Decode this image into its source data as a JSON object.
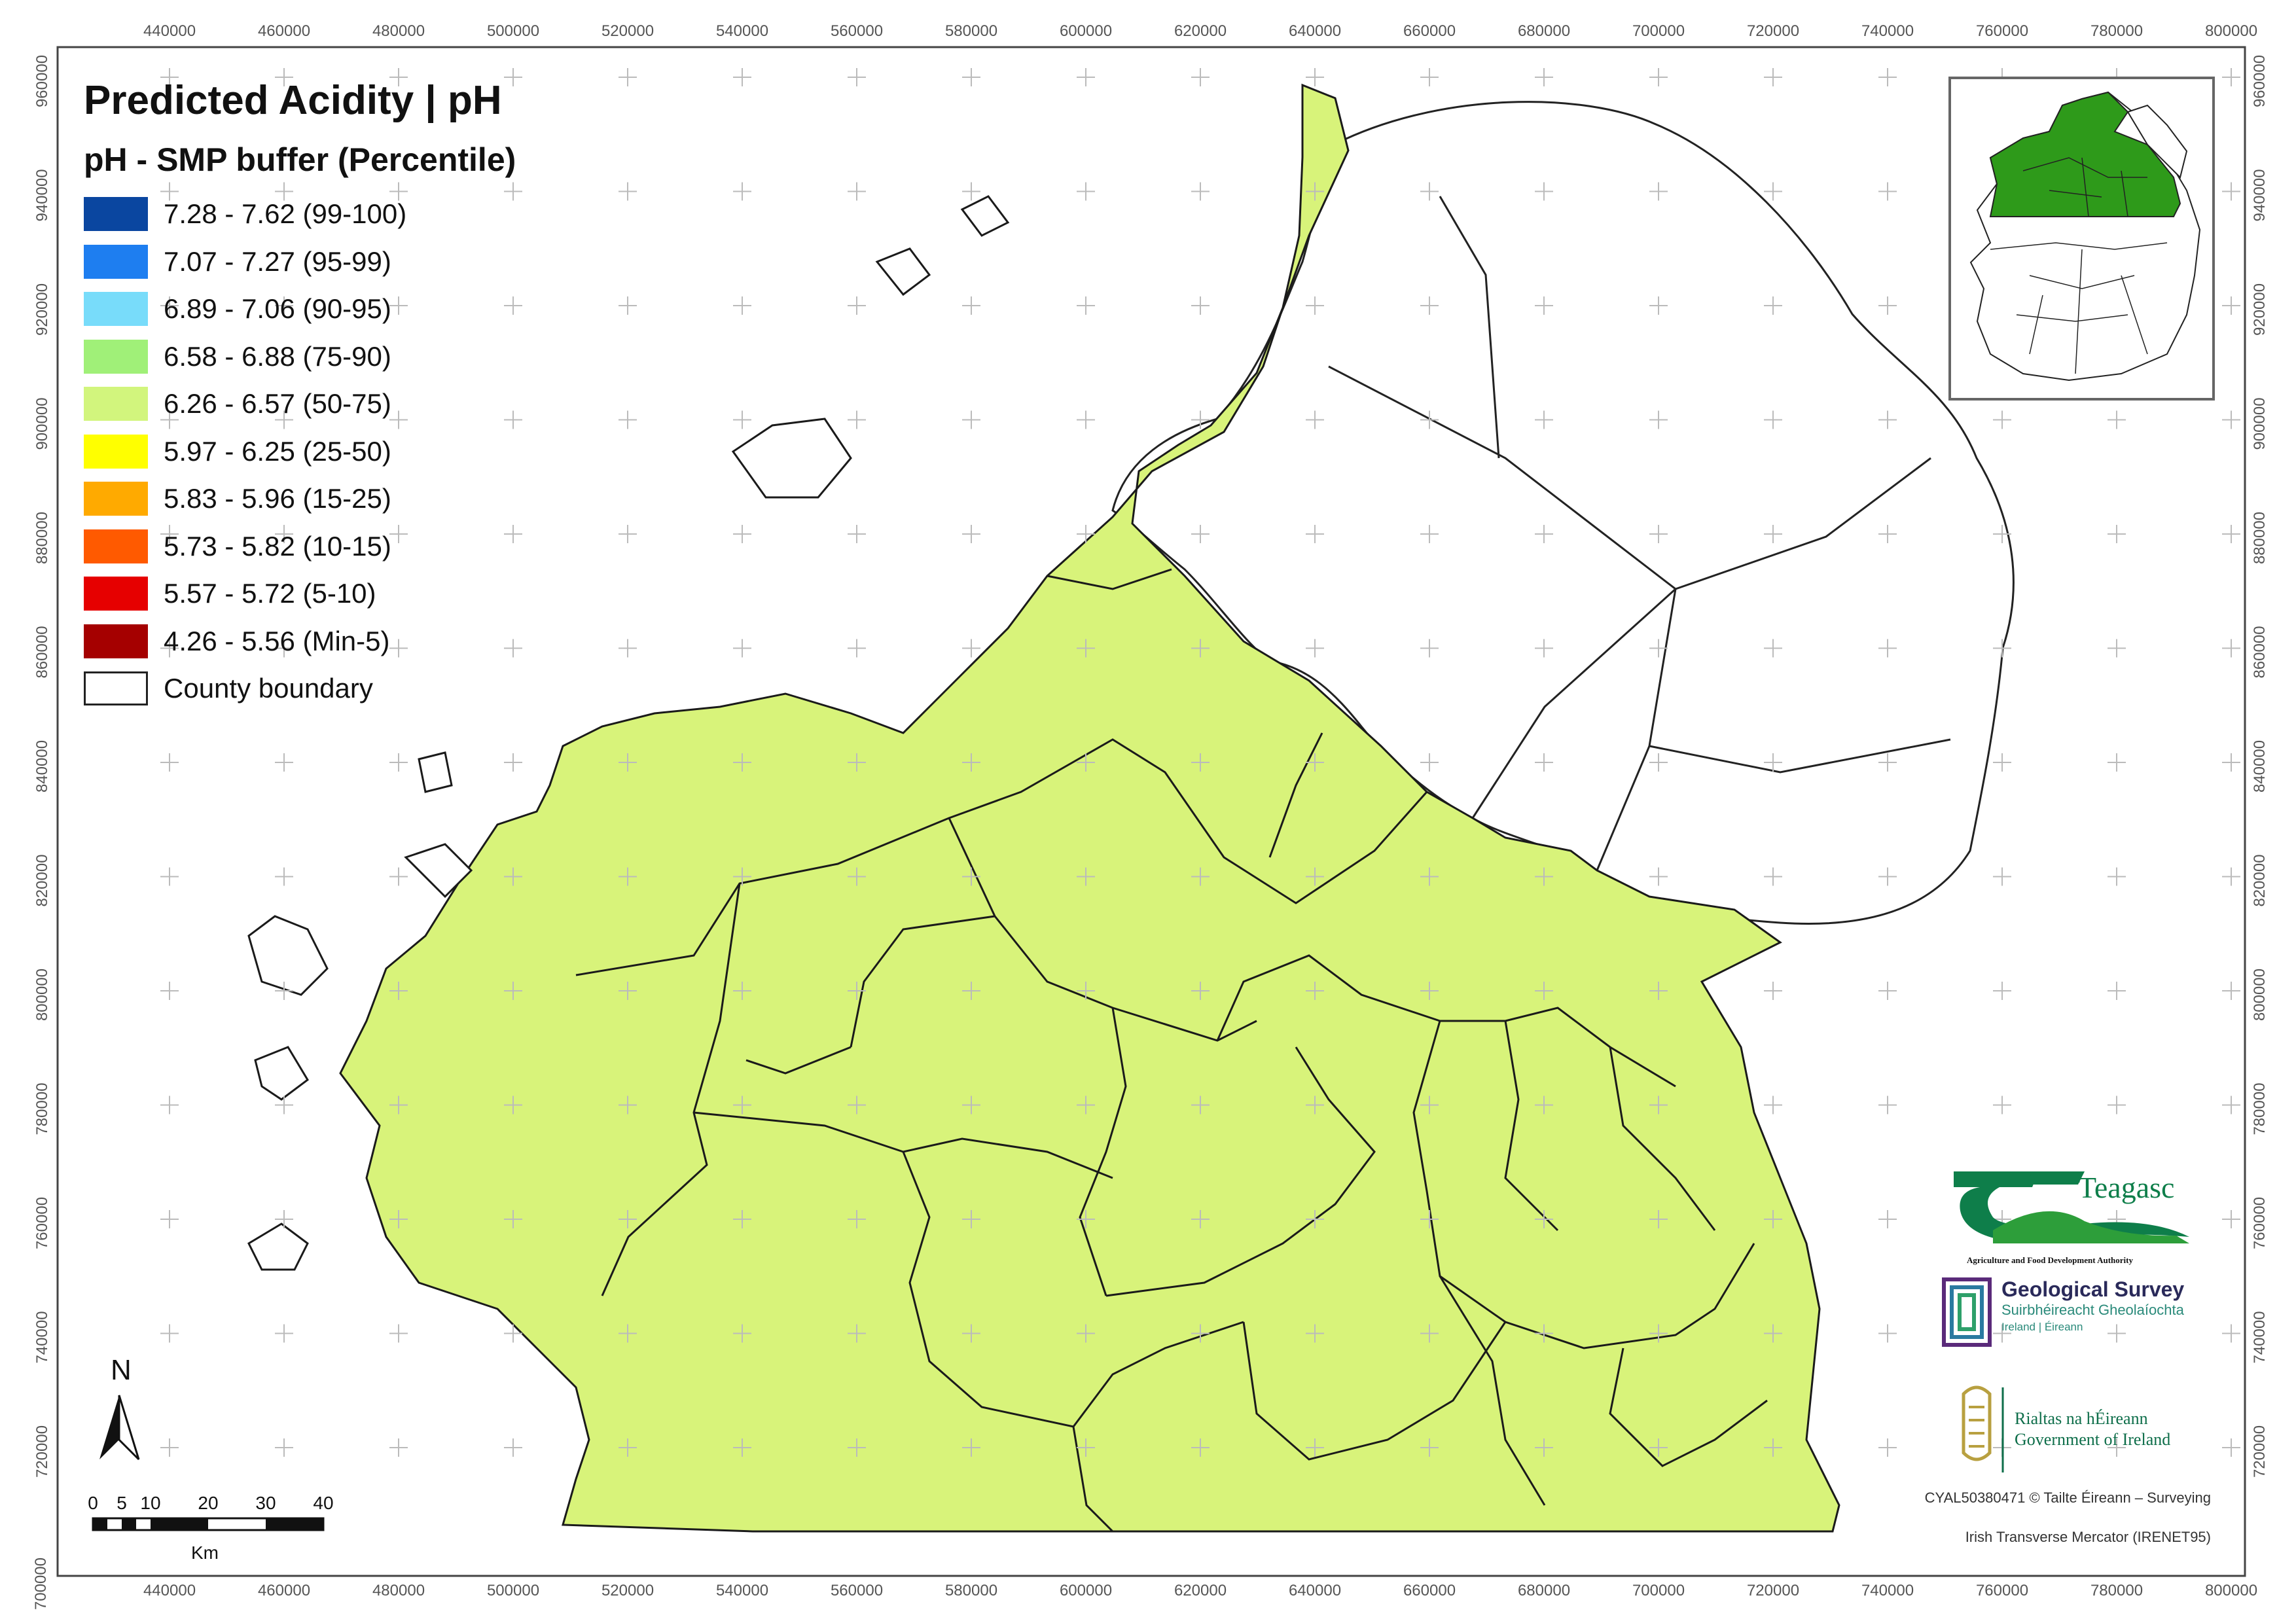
{
  "legend": {
    "title": "Predicted Acidity | pH",
    "subtitle": "pH - SMP buffer (Percentile)",
    "items": [
      {
        "label": "7.28 - 7.62 (99-100)",
        "color": "#0a46a0"
      },
      {
        "label": "7.07 - 7.27 (95-99)",
        "color": "#1e7ef0"
      },
      {
        "label": "6.89 - 7.06 (90-95)",
        "color": "#78dcfa"
      },
      {
        "label": "6.58 - 6.88 (75-90)",
        "color": "#a0f078"
      },
      {
        "label": "6.26 - 6.57 (50-75)",
        "color": "#d2f57d"
      },
      {
        "label": "5.97 - 6.25 (25-50)",
        "color": "#ffff00"
      },
      {
        "label": "5.83 - 5.96 (15-25)",
        "color": "#ffaa00"
      },
      {
        "label": "5.73 - 5.82 (10-15)",
        "color": "#ff5a00"
      },
      {
        "label": "5.57 - 5.72 (5-10)",
        "color": "#e60000"
      },
      {
        "label": "4.26 - 5.56 (Min-5)",
        "color": "#a50000"
      }
    ],
    "boundary_label": "County boundary"
  },
  "axes": {
    "x_ticks": [
      "440000",
      "460000",
      "480000",
      "500000",
      "520000",
      "540000",
      "560000",
      "580000",
      "600000",
      "620000",
      "640000",
      "660000",
      "680000",
      "700000",
      "720000",
      "740000",
      "760000",
      "780000",
      "800000"
    ],
    "y_ticks": [
      "960000",
      "940000",
      "920000",
      "900000",
      "880000",
      "860000",
      "840000",
      "820000",
      "800000",
      "780000",
      "760000",
      "740000",
      "720000"
    ],
    "y_corner_bottom": "700000"
  },
  "north_arrow": {
    "label": "N",
    "icon": "north-arrow-icon"
  },
  "scale_bar": {
    "ticks": [
      "0",
      "5",
      "10",
      "20",
      "30",
      "40"
    ],
    "unit": "Km"
  },
  "logos": {
    "teagasc": {
      "name": "Teagasc",
      "tagline": "Agriculture and Food Development Authority"
    },
    "gsi": {
      "line1": "Geological Survey",
      "line2": "Suirbhéireacht Gheolaíochta",
      "line3": "Ireland | Éireann"
    },
    "gov": {
      "line1": "Rialtas na hÉireann",
      "line2": "Government of Ireland"
    }
  },
  "credits": {
    "copyright": "CYAL50380471 © Tailte Éireann – Surveying",
    "projection": "Irish Transverse Mercator (IRENET95)"
  },
  "colors": {
    "frame": "#444444",
    "grid_cross": "#bbbbbb",
    "county_line": "#222222",
    "inset_highlight": "#2e9a1a"
  }
}
